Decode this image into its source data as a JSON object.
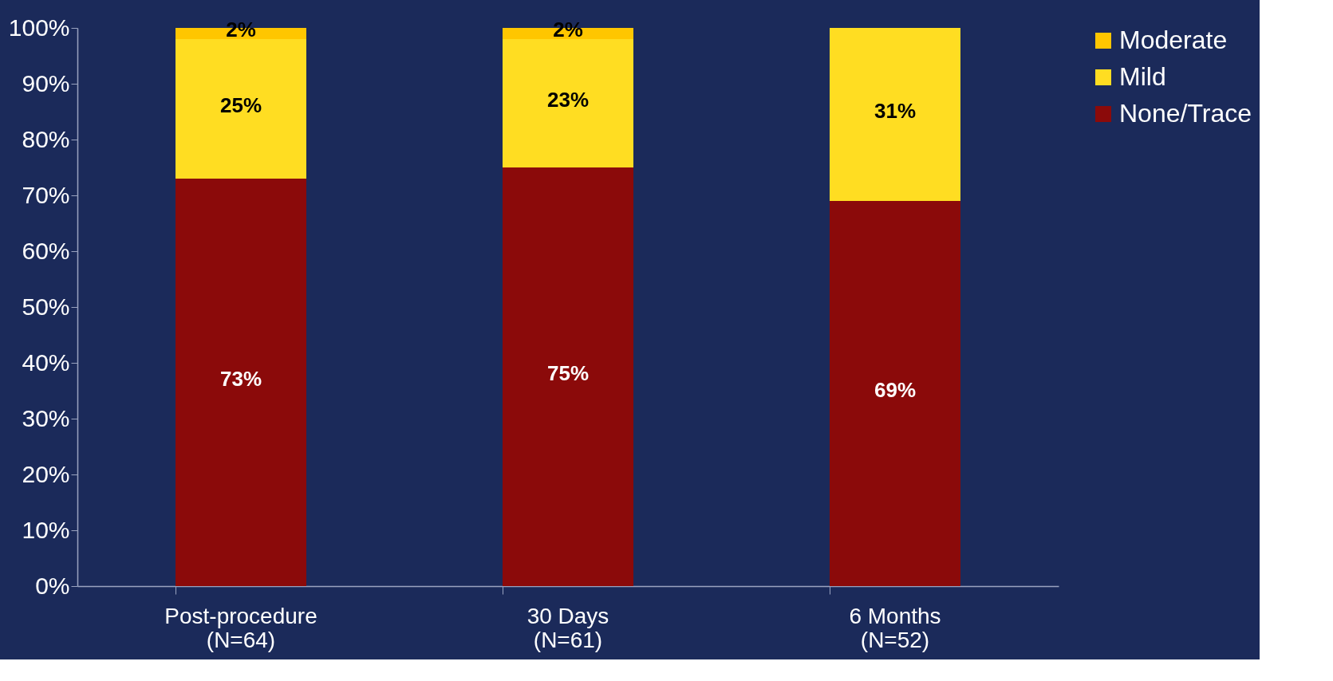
{
  "chart_data": {
    "type": "bar",
    "stacked": true,
    "categories": [
      "Post-procedure\n(N=64)",
      "30 Days\n(N=61)",
      "6 Months\n(N=52)"
    ],
    "series": [
      {
        "name": "None/Trace",
        "color": "#8b0a0a",
        "values": [
          73,
          75,
          69
        ],
        "value_labels": [
          "73%",
          "75%",
          "69%"
        ]
      },
      {
        "name": "Mild",
        "color": "#ffdd22",
        "values": [
          25,
          23,
          31
        ],
        "value_labels": [
          "25%",
          "23%",
          "31%"
        ]
      },
      {
        "name": "Moderate",
        "color": "#ffc600",
        "values": [
          2,
          2,
          0
        ],
        "value_labels": [
          "2%",
          "2%",
          null
        ]
      }
    ],
    "ylim": [
      0,
      100
    ],
    "yticks": [
      {
        "value": 0,
        "label": "0%"
      },
      {
        "value": 10,
        "label": "10%"
      },
      {
        "value": 20,
        "label": "20%"
      },
      {
        "value": 30,
        "label": "30%"
      },
      {
        "value": 40,
        "label": "40%"
      },
      {
        "value": 50,
        "label": "50%"
      },
      {
        "value": 60,
        "label": "60%"
      },
      {
        "value": 70,
        "label": "70%"
      },
      {
        "value": 80,
        "label": "80%"
      },
      {
        "value": 90,
        "label": "90%"
      },
      {
        "value": 100,
        "label": "100%"
      }
    ],
    "legend": "right",
    "grid": false
  }
}
